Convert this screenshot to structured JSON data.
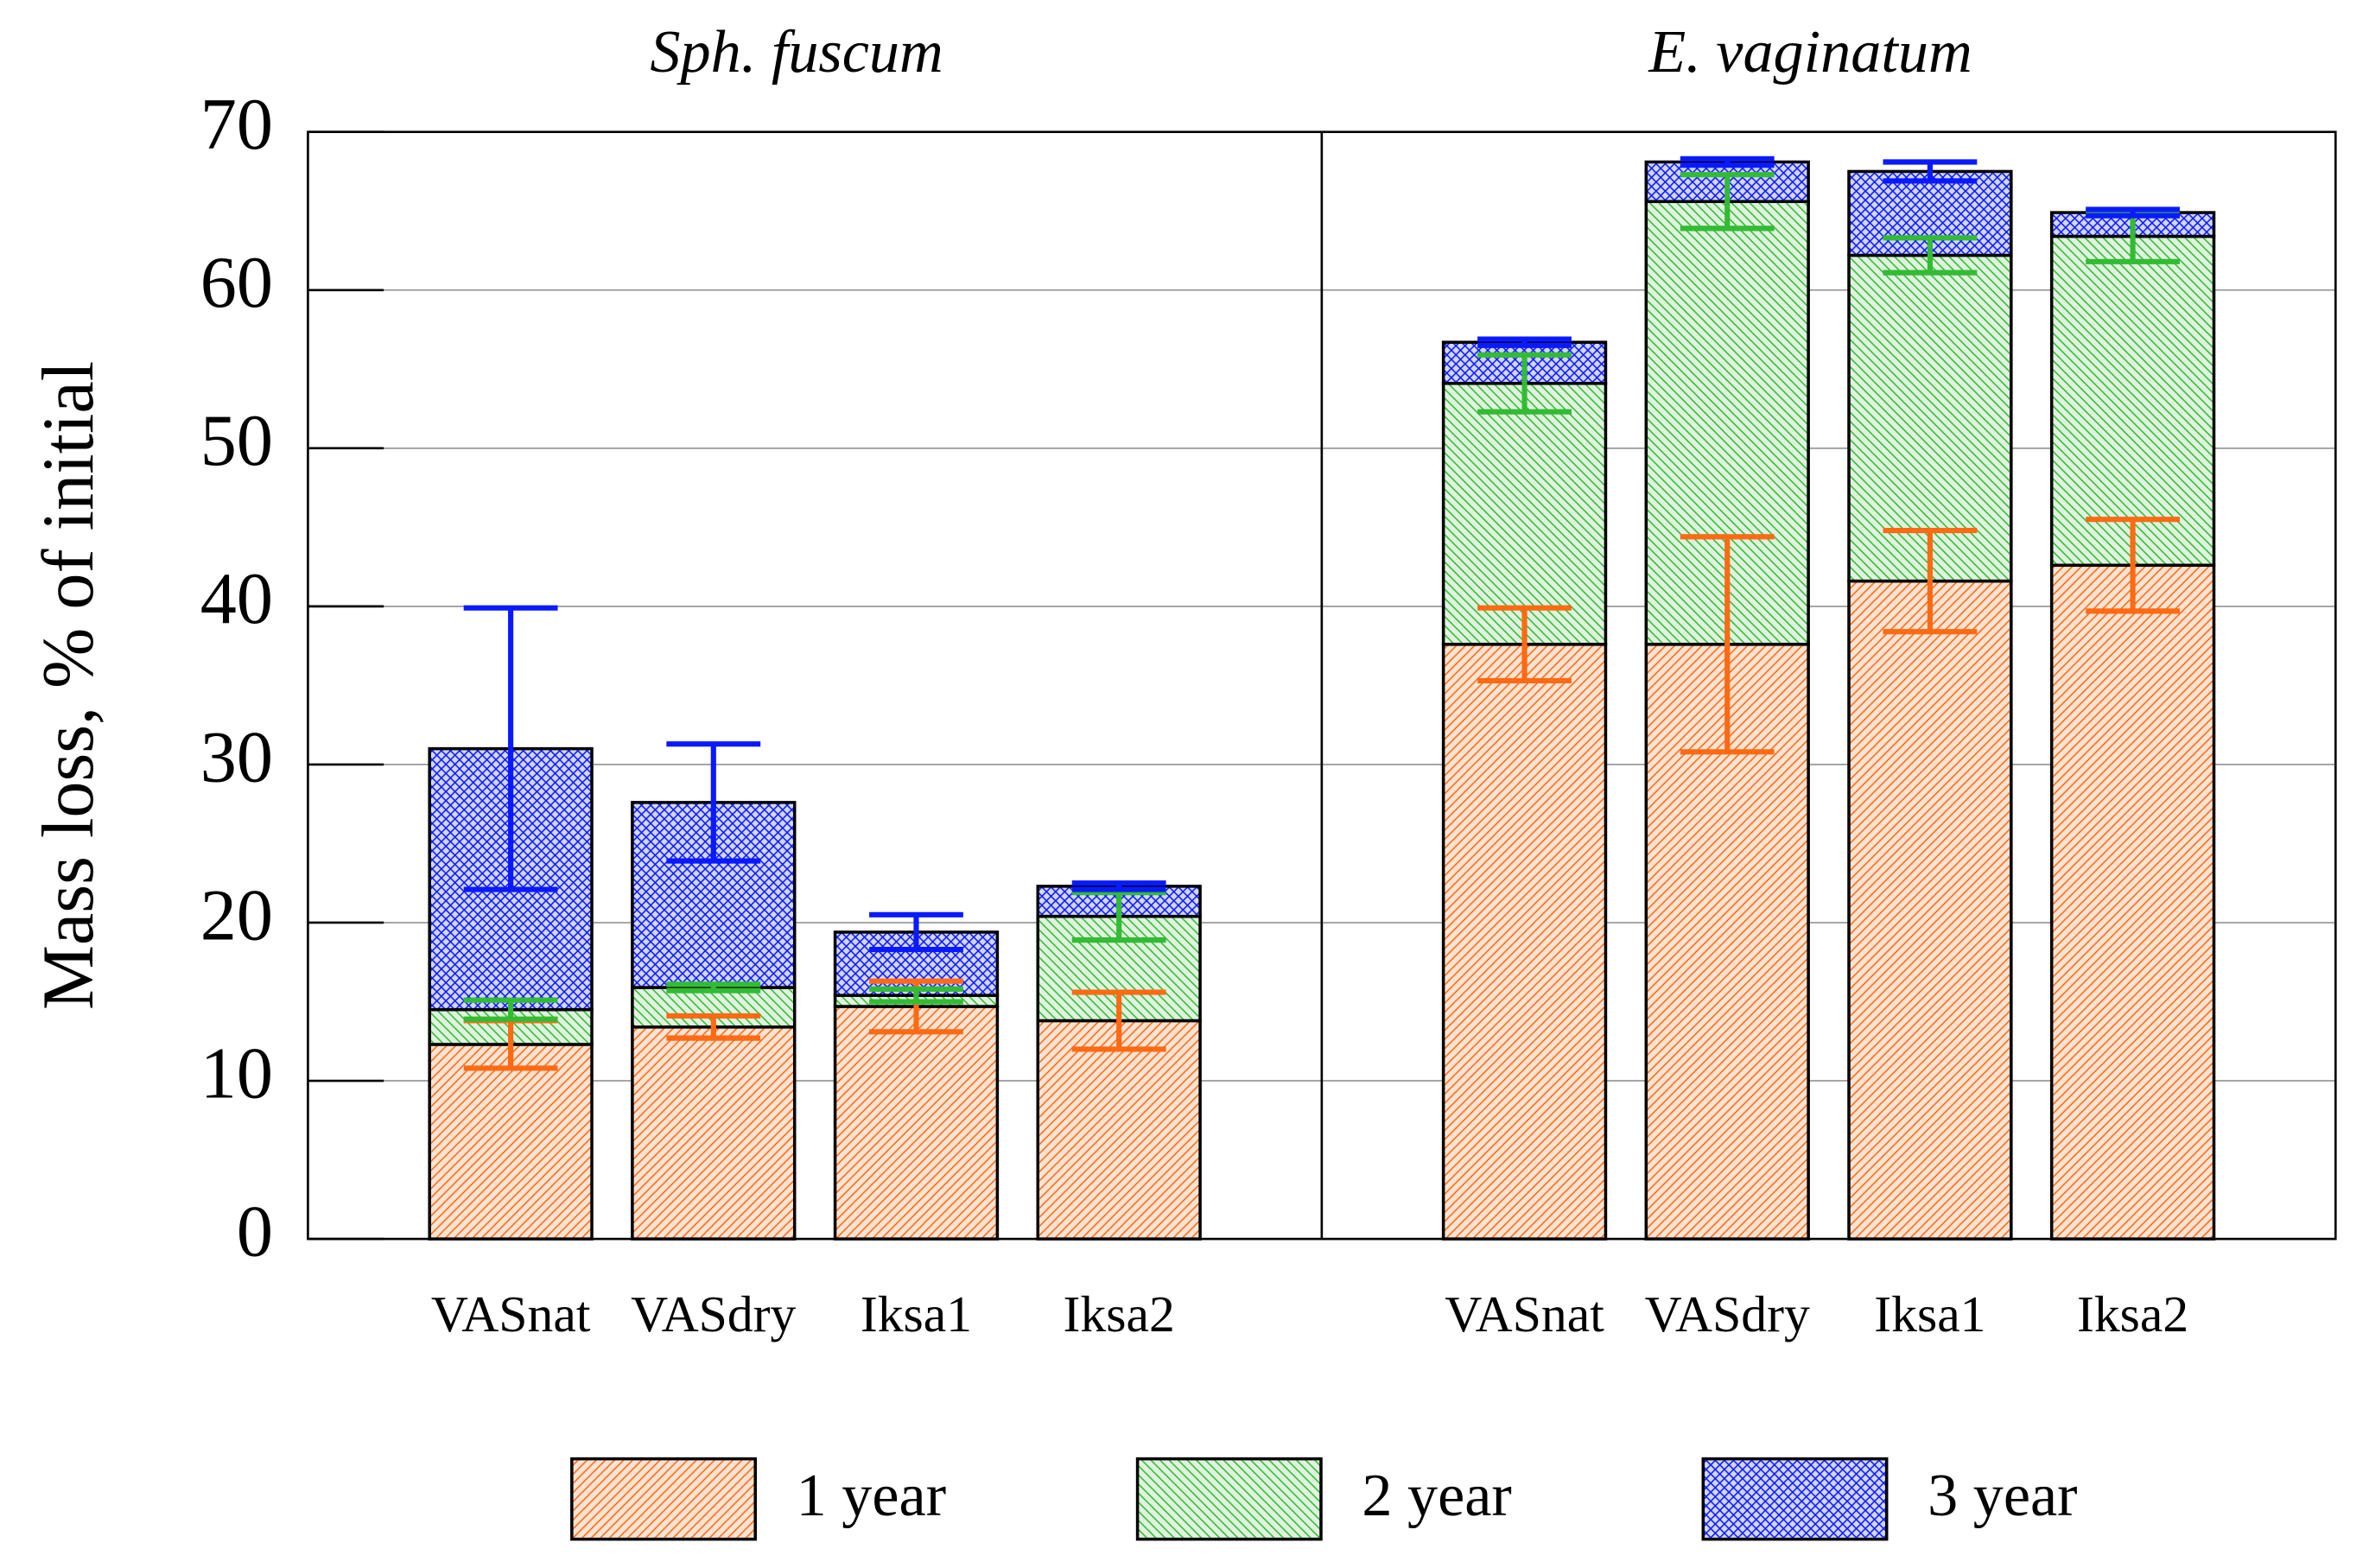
{
  "chart_data": {
    "type": "stacked-bar",
    "ylabel": "Mass loss, % of initial",
    "ylim": [
      0,
      70
    ],
    "yticks": [
      0,
      10,
      20,
      30,
      40,
      50,
      60,
      70
    ],
    "grid": true,
    "groups": [
      "Sph. fuscum",
      "E. vaginatum"
    ],
    "categories": [
      "VASnat",
      "VASdry",
      "Iksa1",
      "Iksa2",
      "VASnat",
      "VASdry",
      "Iksa1",
      "Iksa2"
    ],
    "series": [
      {
        "name": "1 year",
        "color": "#ff6a13",
        "values": [
          12.3,
          13.4,
          14.7,
          13.8,
          37.6,
          37.6,
          41.6,
          42.6
        ],
        "errors": [
          1.5,
          0.7,
          1.6,
          1.8,
          2.3,
          6.8,
          3.2,
          2.9
        ]
      },
      {
        "name": "2 year",
        "color": "#33bb33",
        "values": [
          2.2,
          2.5,
          0.7,
          6.6,
          16.5,
          28.0,
          20.6,
          20.8
        ],
        "errors": [
          0.6,
          0.2,
          0.4,
          1.5,
          1.8,
          1.7,
          1.1,
          1.6
        ]
      },
      {
        "name": "3 year",
        "color": "#0a1aff",
        "values": [
          16.5,
          11.7,
          4.0,
          1.9,
          2.6,
          2.5,
          5.3,
          1.5
        ],
        "errors": [
          8.9,
          3.7,
          1.1,
          0.2,
          0.2,
          0.2,
          0.6,
          0.2
        ]
      }
    ]
  }
}
